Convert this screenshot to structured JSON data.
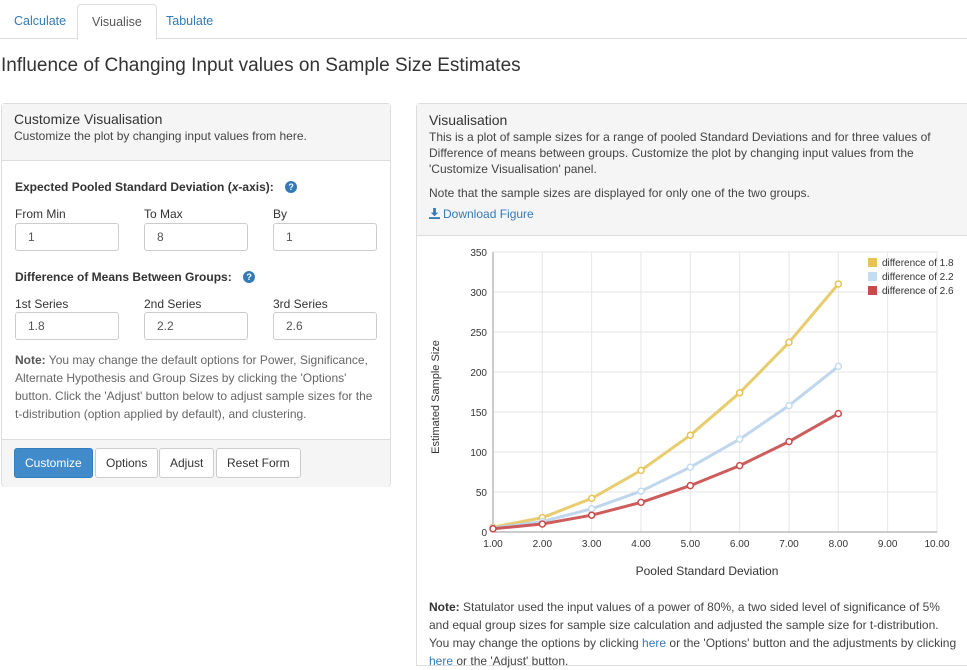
{
  "tabs": [
    {
      "label": "Calculate",
      "active": false
    },
    {
      "label": "Visualise",
      "active": true
    },
    {
      "label": "Tabulate",
      "active": false
    }
  ],
  "page_title": "Influence of Changing Input values on Sample Size Estimates",
  "customize": {
    "title": "Customize Visualisation",
    "subtitle": "Customize the plot by changing input values from here.",
    "sd_label_pre": "Expected Pooled Standard Deviation (",
    "sd_label_em": "x",
    "sd_label_post": "-axis):",
    "help_icon": "question-circle-icon",
    "from_min": {
      "label": "From Min",
      "value": "1"
    },
    "to_max": {
      "label": "To Max",
      "value": "8"
    },
    "by": {
      "label": "By",
      "value": "1"
    },
    "diff_label": "Difference of Means Between Groups:",
    "series1": {
      "label": "1st Series",
      "value": "1.8"
    },
    "series2": {
      "label": "2nd Series",
      "value": "2.2"
    },
    "series3": {
      "label": "3rd Series",
      "value": "2.6"
    },
    "note_bold": "Note:",
    "note_text": " You may change the default options for Power, Significance, Alternate Hypothesis and Group Sizes by clicking the 'Options' button. Click the 'Adjust' button below to adjust sample sizes for the t-distribution (option applied by default), and clustering.",
    "buttons": {
      "customize": "Customize",
      "options": "Options",
      "adjust": "Adjust",
      "reset": "Reset Form"
    }
  },
  "visualisation": {
    "title": "Visualisation",
    "desc": "This is a plot of sample sizes for a range of pooled Standard Deviations and for three values of Difference of means between groups. Customize the plot by changing input values from the 'Customize Visualisation' panel.",
    "note": "Note that the sample sizes are displayed for only one of the two groups.",
    "download": "Download Figure",
    "download_icon": "download-icon",
    "bottom_note_bold": "Note:",
    "bottom_note_1": " Statulator used the input values of a power of 80%, a two sided level of significance of 5% and equal group sizes for sample size calculation and adjusted the sample size for t-distribution. You may change the options by clicking ",
    "link1": "here",
    "bottom_note_2": " or the 'Options' button and the adjustments by clicking ",
    "link2": "here",
    "bottom_note_3": " or the 'Adjust' button."
  },
  "chart_data": {
    "type": "line",
    "xlabel": "Pooled Standard Deviation",
    "ylabel": "Estimated Sample Size",
    "xlim": [
      1,
      10
    ],
    "ylim": [
      0,
      350
    ],
    "xticks": [
      "1.00",
      "2.00",
      "3.00",
      "4.00",
      "5.00",
      "6.00",
      "7.00",
      "8.00",
      "9.00",
      "10.00"
    ],
    "yticks": [
      "0",
      "50",
      "100",
      "150",
      "200",
      "250",
      "300",
      "350"
    ],
    "legend_position": "top-right",
    "grid": true,
    "x": [
      1,
      2,
      3,
      4,
      5,
      6,
      7,
      8
    ],
    "series": [
      {
        "name": "difference of 1.8",
        "color": "#e6c65e",
        "marker": "#e8c254",
        "values": [
          6,
          18,
          42,
          77,
          121,
          174,
          237,
          310
        ]
      },
      {
        "name": "difference of 2.2",
        "color": "#b8d2ea",
        "marker": "#c4dcf0",
        "values": [
          5,
          13,
          29,
          51,
          81,
          116,
          158,
          207
        ]
      },
      {
        "name": "difference of 2.6",
        "color": "#c84a4a",
        "marker": "#c84a4a",
        "values": [
          4,
          10,
          21,
          37,
          58,
          83,
          113,
          148
        ]
      }
    ]
  }
}
